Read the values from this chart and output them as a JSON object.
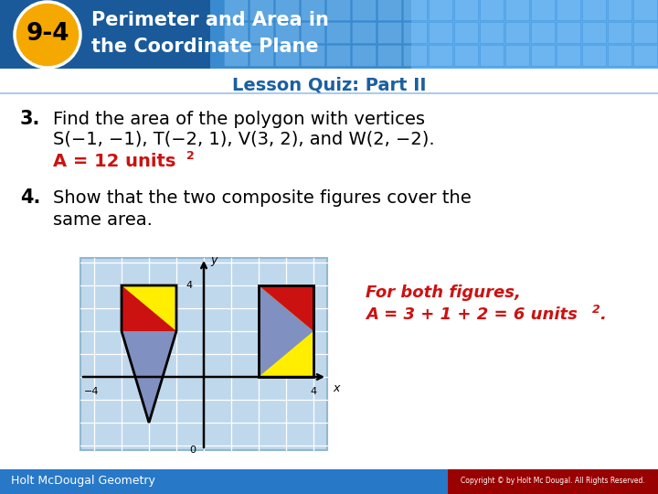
{
  "title_number": "9-4",
  "title_line1": "Perimeter and Area in",
  "title_line2": "the Coordinate Plane",
  "subtitle": "Lesson Quiz: Part II",
  "header_bg_dark": "#1a5a9a",
  "header_bg_mid": "#2878c8",
  "header_text_color": "#ffffff",
  "badge_bg_color": "#f5a800",
  "subtitle_text_color": "#1a5fa0",
  "q3_number": "3.",
  "q3_text_line1": "Find the area of the polygon with vertices",
  "q3_text_line2": "S(−1, −1), T(−2, 1), V(3, 2), and W(2, −2).",
  "q3_answer": "A = 12 units",
  "q4_number": "4.",
  "q4_text_line1": "Show that the two composite figures cover the",
  "q4_text_line2": "same area.",
  "q4_answer_line1": "For both figures,",
  "q4_answer_line2": "A = 3 + 1 + 2 = 6 units",
  "answer_color": "#cc1111",
  "text_color": "#111111",
  "footer_text": "Holt McDougal Geometry",
  "footer_bg": "#2878c8",
  "footer_copyright": "Copyright © by Holt Mc Dougal. All Rights Reserved.",
  "graph_bg": "#c0d8ec",
  "graph_border": "#90b8d0",
  "yellow_color": "#ffee00",
  "red_color": "#cc1111",
  "blue_color": "#8090c0",
  "grid_color": "#ffffff",
  "axis_color": "#111111"
}
